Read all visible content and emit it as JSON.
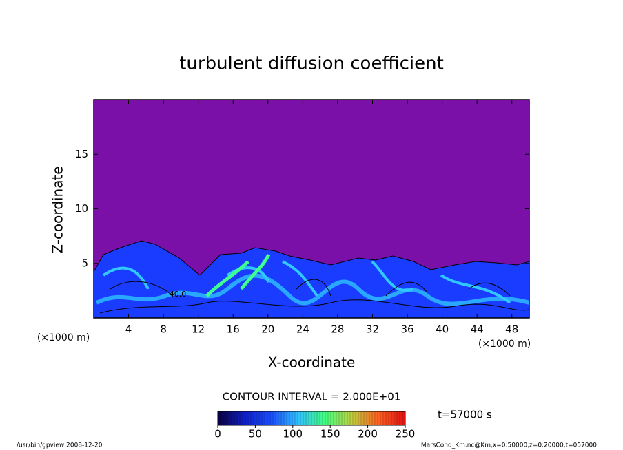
{
  "chart_data": {
    "type": "contour",
    "title": "turbulent diffusion coefficient",
    "x_label": "X-coordinate",
    "y_label": "Z-coordinate",
    "x_unit": "(×1000 m)",
    "y_unit": "(×1000 m)",
    "xlim": [
      0,
      50
    ],
    "xticks": [
      4,
      8,
      12,
      16,
      20,
      24,
      28,
      32,
      36,
      40,
      44,
      48
    ],
    "ylim": [
      0,
      20
    ],
    "yticks": [
      5,
      10,
      15
    ],
    "contour_label": "40.0",
    "contour_interval_label": "CONTOUR INTERVAL = 2.000E+01",
    "time_label": "t=57000 s",
    "colorbar": {
      "lim": [
        0,
        250
      ],
      "ticks": [
        0,
        50,
        100,
        150,
        200,
        250
      ],
      "colors": [
        "#0a0040",
        "#1020c8",
        "#1a50ff",
        "#30c0ff",
        "#40ff80",
        "#c0d040",
        "#ff6020",
        "#e01010"
      ]
    },
    "background_color": "#7b10a8",
    "footer_left": "/usr/bin/gpview   2008-12-20",
    "footer_right": "MarsCond_Km.nc@Km,x=0:50000,z=0:20000,t=057000"
  }
}
